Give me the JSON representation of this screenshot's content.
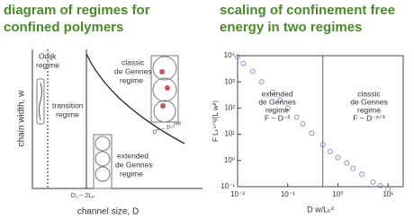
{
  "left_panel": {
    "title": [
      "diagram of regimes for",
      "confined polymers"
    ],
    "y_label": "chain width, w",
    "x_label": "channel size, D",
    "odijk": [
      "Odijk",
      "regime"
    ],
    "transition": [
      "transition",
      "regime"
    ],
    "classic": [
      "classic",
      "de Gennes",
      "regime"
    ],
    "extended": [
      "extended",
      "de Gennes",
      "regime"
    ],
    "d1": "D₁ ~ 2Lₚ",
    "dstar": "D** ~ 2Lₚ²/w"
  },
  "chart_data": {
    "type": "scatter",
    "title": [
      "scaling of confinement free",
      "energy in two regimes"
    ],
    "x_label": "D w/Lₖ²",
    "y_label": "F Lₖ¹ᐟ³/(L w²)",
    "x": [
      0.01,
      0.013,
      0.02,
      0.03,
      0.05,
      0.07,
      0.1,
      0.15,
      0.2,
      0.3,
      0.5,
      0.7,
      1,
      1.5,
      2,
      3,
      5,
      7,
      10
    ],
    "values": [
      9000,
      5000,
      2500,
      1000,
      400,
      200,
      100,
      45,
      25,
      11,
      4,
      2.2,
      1.3,
      0.8,
      0.5,
      0.3,
      0.15,
      0.11,
      0.08
    ],
    "color": "#8a7fc0",
    "xlim": [
      0.01,
      20
    ],
    "ylim": [
      0.1,
      10000
    ],
    "log_x": true,
    "log_y": true,
    "xticks": [
      {
        "value": 0.01,
        "label": "10⁻²"
      },
      {
        "value": 0.1,
        "label": "10⁻¹"
      },
      {
        "value": 1,
        "label": "10⁰"
      },
      {
        "value": 10,
        "label": "10¹"
      }
    ],
    "yticks": [
      {
        "value": 0.1,
        "label": "10⁻¹"
      },
      {
        "value": 1,
        "label": "10⁰"
      },
      {
        "value": 10,
        "label": "10¹"
      },
      {
        "value": 100,
        "label": "10²"
      },
      {
        "value": 1000,
        "label": "10³"
      },
      {
        "value": 10000,
        "label": "10⁴"
      }
    ],
    "boundary_x": 0.5,
    "annotations": [
      [
        "extended",
        "de Gennes",
        "regime",
        "F ~ D⁻²"
      ],
      [
        "classic",
        "de Gennes",
        "regime",
        "F ~ D⁻⁵ᐟ³"
      ]
    ]
  }
}
